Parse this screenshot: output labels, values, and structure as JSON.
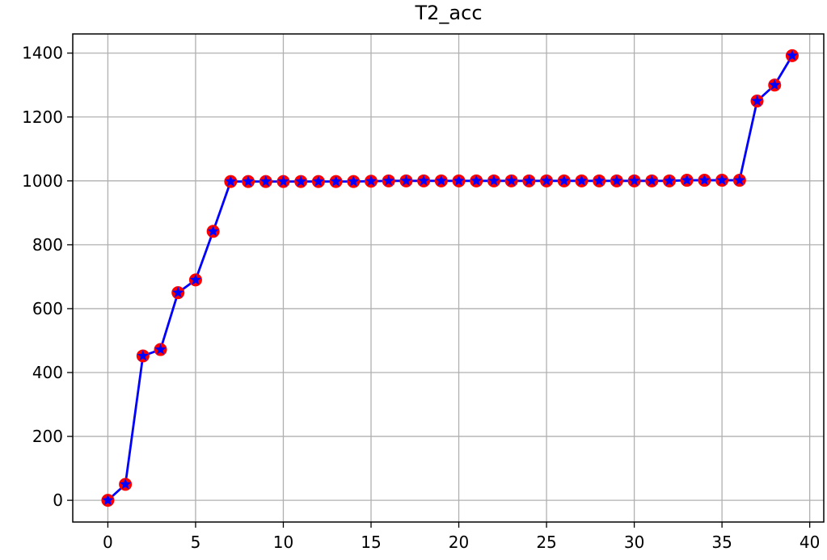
{
  "chart_data": {
    "type": "line",
    "title": "T2_acc",
    "xlabel": "",
    "ylabel": "",
    "xlim": [
      -2,
      40.8
    ],
    "ylim": [
      -68,
      1460
    ],
    "x_ticks": [
      0,
      5,
      10,
      15,
      20,
      25,
      30,
      35,
      40
    ],
    "y_ticks": [
      0,
      200,
      400,
      600,
      800,
      1000,
      1200,
      1400
    ],
    "grid": true,
    "colors": {
      "line": "#0000ff",
      "marker_fill": "#ff0000",
      "marker_edge": "#0000ff",
      "grid": "#b0b0b0"
    },
    "series": [
      {
        "marker": "circle+star",
        "x": [
          0,
          1,
          2,
          3,
          4,
          5,
          6,
          7,
          8,
          9,
          10,
          11,
          12,
          13,
          14,
          15,
          16,
          17,
          18,
          19,
          20,
          21,
          22,
          23,
          24,
          25,
          26,
          27,
          28,
          29,
          30,
          31,
          32,
          33,
          34,
          35,
          36,
          37,
          38,
          39
        ],
        "values": [
          0,
          50,
          452,
          472,
          650,
          690,
          842,
          998,
          998,
          998,
          998,
          998,
          998,
          998,
          998,
          999,
          1000,
          1000,
          1000,
          1000,
          1000,
          1000,
          1000,
          1000,
          1000,
          1000,
          1000,
          1000,
          1000,
          1000,
          1000,
          1000,
          1000,
          1002,
          1002,
          1002,
          1002,
          1250,
          1300,
          1392
        ]
      }
    ]
  }
}
